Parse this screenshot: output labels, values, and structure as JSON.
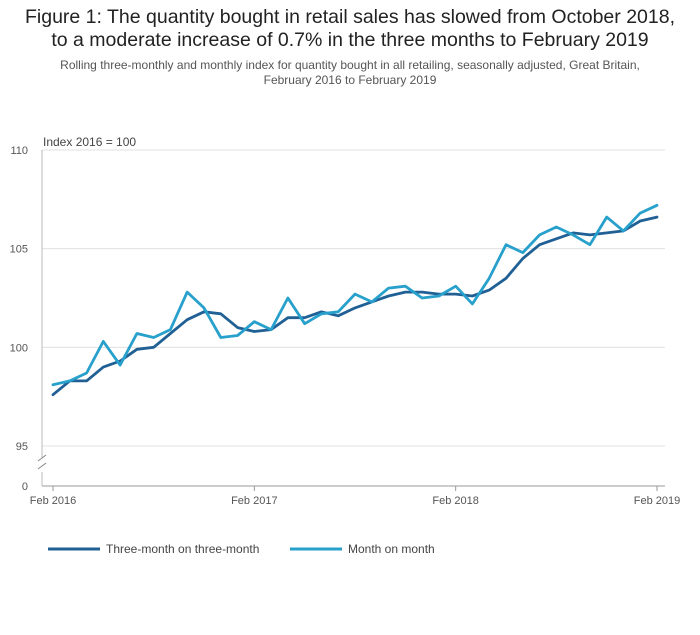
{
  "chart_data": {
    "type": "line",
    "title_line1": "Figure 1: The quantity bought in retail sales has slowed from October 2018,",
    "title_line2": "to a moderate increase of 0.7% in the three months to February 2019",
    "subtitle_line1": "Rolling three-monthly and monthly index for quantity bought in all retailing, seasonally adjusted, Great Britain,",
    "subtitle_line2": "February 2016 to February 2019",
    "ylabel": "Index 2016 = 100",
    "y_ticks": [
      "110",
      "105",
      "100",
      "95",
      "0"
    ],
    "y_tick_values": [
      110,
      105,
      100,
      95
    ],
    "ylim": [
      94,
      110
    ],
    "axis_break": true,
    "x_ticks": [
      "Feb 2016",
      "Feb 2017",
      "Feb 2018",
      "Feb 2019"
    ],
    "x_tick_index": [
      0,
      12,
      24,
      36
    ],
    "x_count": 37,
    "series": [
      {
        "name": "Three-month on three-month",
        "color": "#206095",
        "values": [
          97.6,
          98.3,
          98.3,
          99.0,
          99.3,
          99.9,
          100.0,
          100.7,
          101.4,
          101.8,
          101.7,
          101.0,
          100.8,
          100.9,
          101.5,
          101.5,
          101.8,
          101.6,
          102.0,
          102.3,
          102.6,
          102.8,
          102.8,
          102.7,
          102.7,
          102.6,
          102.9,
          103.5,
          104.5,
          105.2,
          105.5,
          105.8,
          105.7,
          105.8,
          105.9,
          106.4,
          106.6
        ]
      },
      {
        "name": "Month on month",
        "color": "#27a0cc",
        "values": [
          98.1,
          98.3,
          98.7,
          100.3,
          99.1,
          100.7,
          100.5,
          100.9,
          102.8,
          102.0,
          100.5,
          100.6,
          101.3,
          100.9,
          102.5,
          101.2,
          101.7,
          101.8,
          102.7,
          102.3,
          103.0,
          103.1,
          102.5,
          102.6,
          103.1,
          102.2,
          103.5,
          105.2,
          104.8,
          105.7,
          106.1,
          105.7,
          105.2,
          106.6,
          105.9,
          106.8,
          107.2
        ]
      }
    ]
  }
}
